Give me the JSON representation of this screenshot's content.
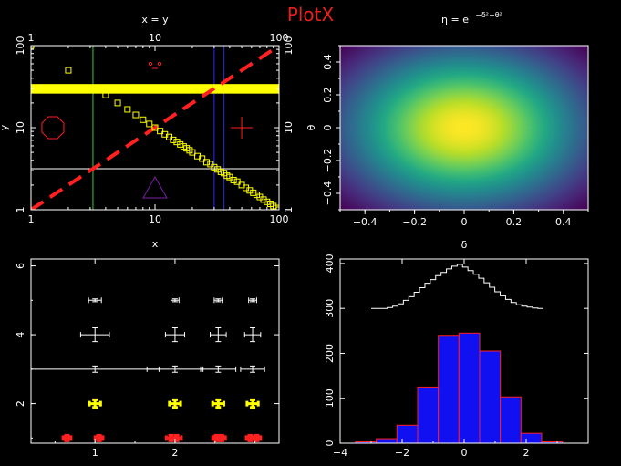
{
  "title": "PlotX",
  "colors": {
    "background": "#000000",
    "axes": "#ffffff",
    "title": "#e8201e",
    "red": "#ff2020",
    "yellow": "#ffff00",
    "green": "#33cc33",
    "blue": "#2b2bff",
    "purple": "#7a1fa2"
  },
  "chart_data": [
    {
      "type": "scatter",
      "panel": "top-left",
      "title": "x = y",
      "ylabel": "y",
      "xscale": "log",
      "yscale": "log",
      "xlim": [
        1,
        100
      ],
      "ylim": [
        1,
        100
      ],
      "x_ticks": [
        "1",
        "10",
        "100"
      ],
      "y_ticks": [
        "1",
        "10",
        "100"
      ],
      "top_ticks": [
        "1",
        "10",
        "100"
      ],
      "right_ticks": [
        "1",
        "10",
        "100"
      ],
      "series": [
        {
          "kind": "line",
          "style": "dashed",
          "color": "#ff2020",
          "points": [
            [
              1,
              1
            ],
            [
              100,
              100
            ]
          ]
        },
        {
          "kind": "markers",
          "marker": "open-square",
          "color": "#ffff00",
          "points": [
            [
              1,
              100
            ],
            [
              2,
              50
            ],
            [
              4,
              25
            ],
            [
              5,
              20
            ],
            [
              6,
              16.7
            ],
            [
              7,
              14.3
            ],
            [
              8,
              12.5
            ],
            [
              9,
              11.1
            ],
            [
              10,
              10
            ],
            [
              11,
              9.1
            ],
            [
              12,
              8.3
            ],
            [
              13,
              7.7
            ],
            [
              14,
              7.1
            ],
            [
              15,
              6.7
            ],
            [
              16,
              6.25
            ],
            [
              17,
              5.9
            ],
            [
              18,
              5.6
            ],
            [
              19,
              5.3
            ],
            [
              20,
              5
            ],
            [
              22,
              4.5
            ],
            [
              24,
              4.2
            ],
            [
              26,
              3.8
            ],
            [
              28,
              3.6
            ],
            [
              30,
              3.3
            ],
            [
              32,
              3.1
            ],
            [
              34,
              2.9
            ],
            [
              36,
              2.8
            ],
            [
              38,
              2.6
            ],
            [
              40,
              2.5
            ],
            [
              43,
              2.3
            ],
            [
              46,
              2.2
            ],
            [
              50,
              2
            ],
            [
              54,
              1.85
            ],
            [
              58,
              1.72
            ],
            [
              62,
              1.61
            ],
            [
              66,
              1.52
            ],
            [
              70,
              1.43
            ],
            [
              75,
              1.33
            ],
            [
              80,
              1.25
            ],
            [
              85,
              1.18
            ],
            [
              90,
              1.11
            ],
            [
              95,
              1.05
            ],
            [
              100,
              1
            ]
          ]
        }
      ],
      "reference_lines": [
        {
          "orientation": "vertical",
          "at": 3.16,
          "color": "#33cc33"
        },
        {
          "orientation": "vertical",
          "at": 30,
          "color": "#2b2bff"
        },
        {
          "orientation": "vertical",
          "at": 36,
          "color": "#2b2bff"
        },
        {
          "orientation": "horizontal",
          "at": 3.16,
          "color": "#ffffff"
        },
        {
          "orientation": "horizontal-band",
          "from": 26,
          "to": 34,
          "color": "#ffff00"
        }
      ],
      "shapes": [
        {
          "shape": "octagon",
          "x": 1.5,
          "y": 10,
          "color": "#ff2020"
        },
        {
          "shape": "plus",
          "x": 50,
          "y": 10,
          "color": "#ff2020"
        },
        {
          "shape": "triangle",
          "x": 10,
          "y": 1.8,
          "color": "#7a1fa2"
        },
        {
          "shape": "smile-face",
          "x": 10,
          "y": 57,
          "color": "#ff2020"
        }
      ]
    },
    {
      "type": "heatmap",
      "panel": "top-right",
      "title": "η = e^(−δ²−θ²)",
      "title_main": "η = e",
      "title_exp": "−δ²−θ²",
      "ylabel": "θ",
      "xlim": [
        -0.5,
        0.5
      ],
      "ylim": [
        -0.5,
        0.5
      ],
      "x_ticks": [
        "−0.4",
        "−0.2",
        "0",
        "0.2",
        "0.4"
      ],
      "y_ticks": [
        "−0.4",
        "−0.2",
        "0",
        "0.2",
        "0.4"
      ],
      "colormap": "viridis",
      "function": "exp(-d^2 - t^2) scaled"
    },
    {
      "type": "scatter",
      "panel": "bottom-left",
      "title": "x",
      "xlim": [
        0.2,
        3.3
      ],
      "ylim": [
        0.85,
        6.2
      ],
      "x_ticks": [
        "1",
        "2"
      ],
      "y_ticks": [
        "2",
        "4",
        "6"
      ],
      "rows": [
        {
          "y": 5,
          "color": "#ffffff",
          "points": [
            {
              "x": 1,
              "xerr": 0.08,
              "yerr": 0.04
            },
            {
              "x": 2,
              "xerr": 0.05,
              "yerr": 0.04
            },
            {
              "x": 2.54,
              "xerr": 0.05,
              "yerr": 0.04
            },
            {
              "x": 2.97,
              "xerr": 0.05,
              "yerr": 0.04
            }
          ]
        },
        {
          "y": 4,
          "color": "#ffffff",
          "points": [
            {
              "x": 1,
              "xerr": 0.18,
              "yerr": 0.2
            },
            {
              "x": 2,
              "xerr": 0.12,
              "yerr": 0.2
            },
            {
              "x": 2.54,
              "xerr": 0.1,
              "yerr": 0.2
            },
            {
              "x": 2.97,
              "xerr": 0.1,
              "yerr": 0.2
            }
          ]
        },
        {
          "y": 3,
          "color": "#ffffff",
          "points": [
            {
              "x": 1,
              "xerr": 0.8,
              "yerr": 0.09
            },
            {
              "x": 2,
              "xerr": 0.35,
              "yerr": 0.09
            },
            {
              "x": 2.54,
              "xerr": 0.22,
              "yerr": 0.09
            },
            {
              "x": 2.97,
              "xerr": 0.15,
              "yerr": 0.09
            }
          ]
        },
        {
          "y": 2,
          "color": "#ffff00",
          "thick": true,
          "points": [
            {
              "x": 1,
              "xerr": 0.07,
              "yerr": 0.11
            },
            {
              "x": 2,
              "xerr": 0.07,
              "yerr": 0.11
            },
            {
              "x": 2.54,
              "xerr": 0.07,
              "yerr": 0.11
            },
            {
              "x": 2.97,
              "xerr": 0.07,
              "yerr": 0.11
            }
          ]
        },
        {
          "y": 1,
          "color": "#ff2020",
          "thick": true,
          "points": [
            {
              "x": 0.65,
              "xerr": 0.05,
              "yerr": 0.08
            },
            {
              "x": 1.05,
              "xerr": 0.05,
              "yerr": 0.08
            },
            {
              "x": 1.95,
              "xerr": 0.06,
              "yerr": 0.08
            },
            {
              "x": 2.02,
              "xerr": 0.06,
              "yerr": 0.08
            },
            {
              "x": 2.52,
              "xerr": 0.05,
              "yerr": 0.08
            },
            {
              "x": 2.58,
              "xerr": 0.05,
              "yerr": 0.08
            },
            {
              "x": 2.94,
              "xerr": 0.05,
              "yerr": 0.08
            },
            {
              "x": 3.02,
              "xerr": 0.05,
              "yerr": 0.08
            }
          ]
        }
      ]
    },
    {
      "type": "bar",
      "panel": "bottom-right",
      "title": "δ",
      "xlim": [
        -4,
        4
      ],
      "ylim": [
        0,
        410
      ],
      "x_ticks": [
        "−4",
        "−2",
        "0",
        "2"
      ],
      "y_ticks": [
        "0",
        "100",
        "200",
        "300",
        "400"
      ],
      "bin_edges": [
        -3.5,
        -2.833,
        -2.167,
        -1.5,
        -0.833,
        -0.167,
        0.5,
        1.167,
        1.833,
        2.5,
        3.167
      ],
      "values": [
        3,
        10,
        40,
        125,
        240,
        245,
        205,
        103,
        22,
        3
      ],
      "bar_fill": "#1010f0",
      "bar_edge": "#ff2020",
      "step_series": {
        "color": "#ffffff",
        "x_start": -3.0,
        "x_end": 2.55,
        "values": [
          300,
          300,
          300,
          302,
          305,
          310,
          318,
          326,
          336,
          346,
          356,
          364,
          373,
          380,
          388,
          394,
          398,
          392,
          384,
          376,
          367,
          357,
          347,
          337,
          328,
          320,
          313,
          308,
          305,
          303,
          301,
          300
        ]
      }
    }
  ]
}
